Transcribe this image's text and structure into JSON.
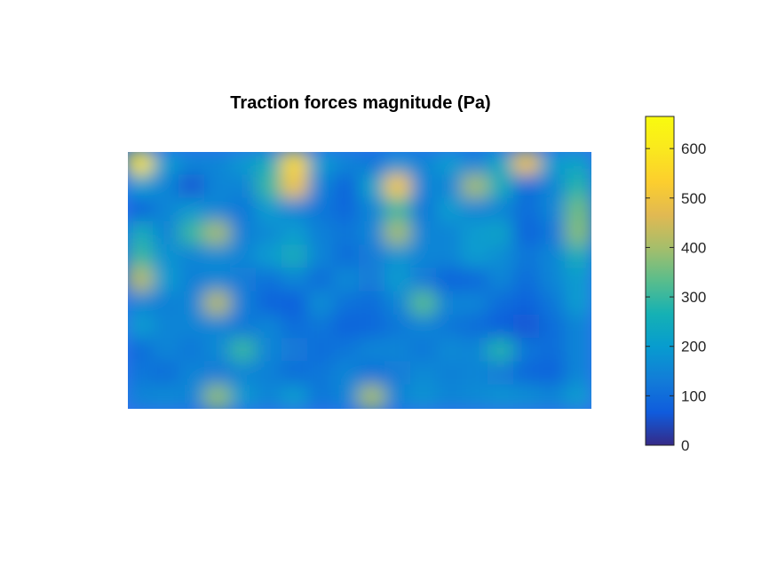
{
  "chart_data": {
    "type": "heatmap",
    "title": "Traction forces magnitude (Pa)",
    "xlabel": "",
    "ylabel": "",
    "axes_visible": false,
    "colormap": "parula",
    "color_range": [
      0,
      665
    ],
    "colorbar": {
      "placement": "right",
      "ticks": [
        0,
        100,
        200,
        300,
        400,
        500,
        600
      ],
      "tick_labels": [
        "0",
        "100",
        "200",
        "300",
        "400",
        "500",
        "600"
      ]
    },
    "grid_shape": [
      11,
      18
    ],
    "values": [
      [
        590,
        200,
        150,
        150,
        190,
        250,
        560,
        200,
        150,
        120,
        180,
        150,
        200,
        150,
        230,
        500,
        200,
        220
      ],
      [
        200,
        150,
        60,
        150,
        150,
        300,
        500,
        150,
        80,
        220,
        520,
        150,
        150,
        400,
        250,
        100,
        150,
        280
      ],
      [
        80,
        150,
        190,
        150,
        120,
        200,
        150,
        120,
        90,
        150,
        300,
        120,
        200,
        150,
        150,
        100,
        150,
        350
      ],
      [
        250,
        150,
        300,
        400,
        140,
        160,
        200,
        140,
        120,
        150,
        400,
        150,
        150,
        200,
        220,
        80,
        120,
        370
      ],
      [
        300,
        180,
        150,
        160,
        150,
        200,
        250,
        150,
        100,
        130,
        180,
        150,
        150,
        200,
        170,
        120,
        150,
        250
      ],
      [
        420,
        200,
        140,
        150,
        130,
        110,
        150,
        100,
        160,
        130,
        200,
        130,
        80,
        90,
        150,
        100,
        150,
        200
      ],
      [
        150,
        140,
        150,
        420,
        140,
        80,
        70,
        170,
        110,
        100,
        150,
        330,
        150,
        150,
        100,
        80,
        120,
        200
      ],
      [
        200,
        150,
        150,
        150,
        120,
        150,
        100,
        120,
        80,
        90,
        120,
        150,
        120,
        100,
        70,
        60,
        100,
        150
      ],
      [
        100,
        150,
        120,
        160,
        300,
        150,
        130,
        100,
        120,
        150,
        150,
        120,
        160,
        150,
        280,
        120,
        100,
        150
      ],
      [
        120,
        100,
        150,
        130,
        150,
        140,
        100,
        120,
        150,
        110,
        130,
        160,
        140,
        150,
        130,
        90,
        80,
        150
      ],
      [
        150,
        160,
        150,
        380,
        190,
        150,
        200,
        120,
        150,
        400,
        150,
        180,
        150,
        160,
        180,
        170,
        150,
        200
      ]
    ]
  }
}
